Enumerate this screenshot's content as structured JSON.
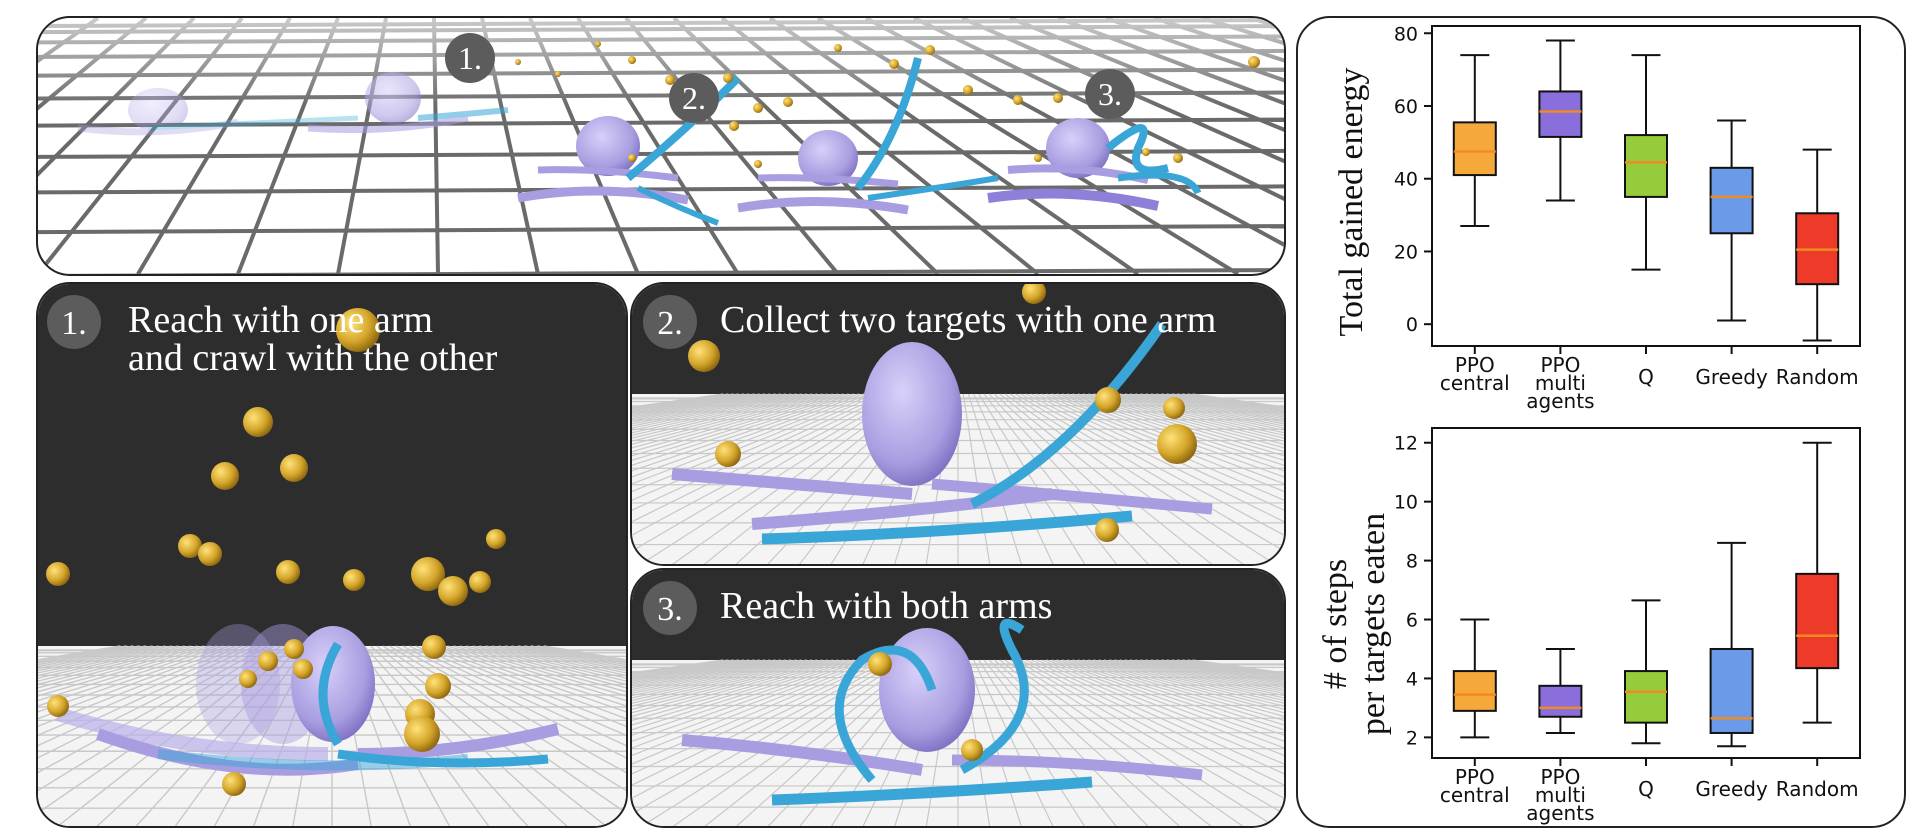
{
  "top_panel": {
    "markers": [
      "1.",
      "2.",
      "3."
    ]
  },
  "scenes": [
    {
      "badge": "1.",
      "caption_lines": [
        "Reach with one arm",
        "and crawl with the other"
      ]
    },
    {
      "badge": "2.",
      "caption_lines": [
        "Collect two targets with one arm"
      ]
    },
    {
      "badge": "3.",
      "caption_lines": [
        "Reach with both arms"
      ]
    }
  ],
  "colors": {
    "octopus_body": "#a89de0",
    "octopus_arm_active": "#3aa6d8",
    "target_gold": "#d4a52a",
    "scene_dark": "#2d2d2d",
    "badge_gray": "#5c5c5c"
  },
  "chart_data": [
    {
      "type": "box",
      "ylabel": "Total gained energy",
      "ylim": [
        -6,
        82
      ],
      "yticks": [
        0,
        20,
        40,
        60,
        80
      ],
      "categories": [
        [
          "PPO",
          "central"
        ],
        [
          "PPO",
          "multi",
          "agents"
        ],
        [
          "Q"
        ],
        [
          "Greedy"
        ],
        [
          "Random"
        ]
      ],
      "colors": [
        "#f5a93a",
        "#8a6fdc",
        "#96cc3c",
        "#6b9ae8",
        "#ee3a28"
      ],
      "boxes": [
        {
          "whisker_low": 27,
          "q1": 41,
          "median": 47.5,
          "q3": 55.5,
          "whisker_high": 74
        },
        {
          "whisker_low": 34,
          "q1": 51.5,
          "median": 58.5,
          "q3": 64,
          "whisker_high": 78
        },
        {
          "whisker_low": 15,
          "q1": 35,
          "median": 44.5,
          "q3": 52,
          "whisker_high": 74
        },
        {
          "whisker_low": 1,
          "q1": 25,
          "median": 35,
          "q3": 43,
          "whisker_high": 56
        },
        {
          "whisker_low": -4.5,
          "q1": 11,
          "median": 20.5,
          "q3": 30.5,
          "whisker_high": 48
        }
      ]
    },
    {
      "type": "box",
      "ylabel_lines": [
        "# of steps",
        "per targets eaten"
      ],
      "ylim": [
        1.3,
        12.5
      ],
      "yticks": [
        2,
        4,
        6,
        8,
        10,
        12
      ],
      "categories": [
        [
          "PPO",
          "central"
        ],
        [
          "PPO",
          "multi",
          "agents"
        ],
        [
          "Q"
        ],
        [
          "Greedy"
        ],
        [
          "Random"
        ]
      ],
      "colors": [
        "#f5a93a",
        "#8a6fdc",
        "#96cc3c",
        "#6b9ae8",
        "#ee3a28"
      ],
      "boxes": [
        {
          "whisker_low": 2.0,
          "q1": 2.9,
          "median": 3.45,
          "q3": 4.25,
          "whisker_high": 6.0
        },
        {
          "whisker_low": 2.15,
          "q1": 2.7,
          "median": 3.0,
          "q3": 3.75,
          "whisker_high": 5.0
        },
        {
          "whisker_low": 1.8,
          "q1": 2.5,
          "median": 3.55,
          "q3": 4.25,
          "whisker_high": 6.65
        },
        {
          "whisker_low": 1.7,
          "q1": 2.15,
          "median": 2.65,
          "q3": 5.0,
          "whisker_high": 8.6
        },
        {
          "whisker_low": 2.5,
          "q1": 4.35,
          "median": 5.45,
          "q3": 7.55,
          "whisker_high": 12.0
        }
      ]
    }
  ]
}
